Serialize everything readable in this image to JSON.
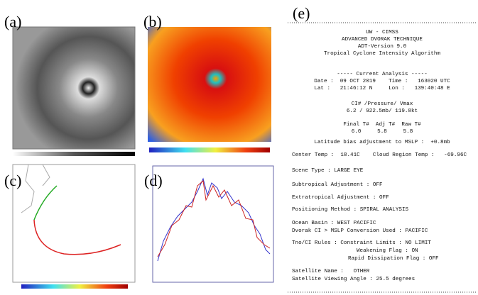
{
  "panels": {
    "a": "(a)",
    "b": "(b)",
    "c": "(c)",
    "d": "(d)",
    "e": "(e)"
  },
  "panel_e": {
    "lines": [
      "UW - CIMSS",
      "ADVANCED DVORAK TECHNIQUE",
      "ADT-Version 9.0",
      "Tropical Cyclone Intensity Algorithm",
      "----- Current Analysis -----",
      "Date :  09 OCT 2019    Time :   163020 UTC",
      "Lat :   21:46:12 N     Lon :   139:40:48 E",
      "CI# /Pressure/ Vmax",
      "6.2 / 922.5mb/ 119.8kt",
      "Final T#  Adj T#  Raw T#",
      "6.0     5.8     5.8",
      "Latitude bias adjustment to MSLP :  +0.8mb",
      "Center Temp :  18.41C    Cloud Region Temp :   -69.96C",
      "Scene Type : LARGE EYE",
      "Subtropical Adjustment : OFF",
      "Extratropical Adjustment : OFF",
      "Positioning Method : SPIRAL ANALYSIS",
      "Ocean Basin : WEST PACIFIC",
      "Dvorak CI > MSLP Conversion Used : PACIFIC",
      "Tno/CI Rules : Constraint Limits : NO LIMIT",
      "Weakening Flag : ON",
      "Rapid Dissipation Flag : OFF",
      "Satellite Name :   OTHER",
      "Satellite Viewing Angle : 25.5 degrees"
    ]
  }
}
